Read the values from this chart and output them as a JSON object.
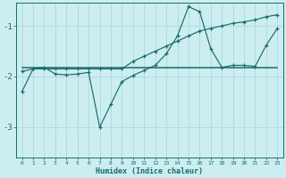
{
  "bg_color": "#cceef0",
  "line_color": "#1a6b6b",
  "grid_color": "#aad4d8",
  "xlabel": "Humidex (Indice chaleur)",
  "xlim": [
    -0.5,
    23.5
  ],
  "ylim": [
    -3.6,
    -0.55
  ],
  "yticks": [
    -3,
    -2,
    -1
  ],
  "xticks": [
    0,
    1,
    2,
    3,
    4,
    5,
    6,
    7,
    8,
    9,
    10,
    11,
    12,
    13,
    14,
    15,
    16,
    17,
    18,
    19,
    20,
    21,
    22,
    23
  ],
  "line1_x": [
    0,
    1,
    2,
    3,
    4,
    5,
    6,
    7,
    8,
    9,
    10,
    11,
    12,
    13,
    14,
    15,
    16,
    17,
    18,
    19,
    20,
    21,
    22,
    23
  ],
  "line1_y": [
    -2.3,
    -1.85,
    -1.82,
    -1.95,
    -1.97,
    -1.95,
    -1.92,
    -3.0,
    -2.55,
    -2.1,
    -1.98,
    -1.88,
    -1.78,
    -1.55,
    -1.2,
    -0.62,
    -0.72,
    -1.45,
    -1.82,
    -1.78,
    -1.78,
    -1.8,
    -1.38,
    -1.05
  ],
  "line2_x": [
    0,
    1,
    2,
    3,
    4,
    5,
    6,
    7,
    8,
    9,
    10,
    11,
    12,
    13,
    14,
    15,
    16,
    17,
    18,
    19,
    20,
    21,
    22,
    23
  ],
  "line2_y": [
    -1.9,
    -1.85,
    -1.85,
    -1.85,
    -1.85,
    -1.85,
    -1.85,
    -1.85,
    -1.85,
    -1.85,
    -1.7,
    -1.6,
    -1.5,
    -1.4,
    -1.3,
    -1.2,
    -1.1,
    -1.05,
    -1.0,
    -0.95,
    -0.92,
    -0.88,
    -0.82,
    -0.78
  ],
  "flat_line_x": [
    0,
    23
  ],
  "flat_line_y": [
    -1.83,
    -1.83
  ]
}
